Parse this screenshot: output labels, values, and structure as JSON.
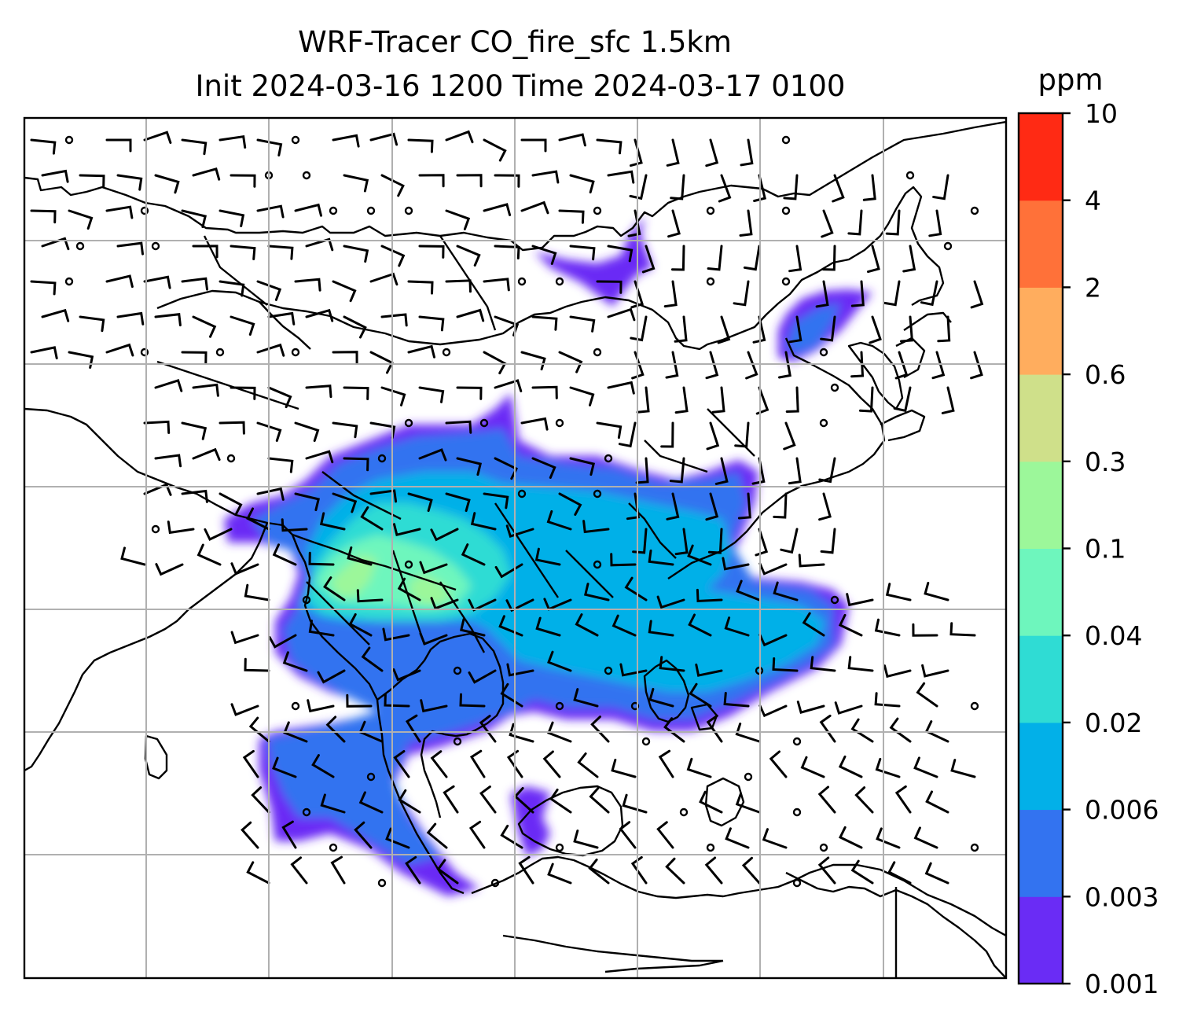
{
  "title": {
    "line1": "WRF-Tracer CO_fire_sfc 1.5km",
    "line2": "Init 2024-03-16 1200 Time 2024-03-17 0100"
  },
  "colorbar": {
    "unit": "ppm",
    "levels": [
      "0.001",
      "0.003",
      "0.006",
      "0.02",
      "0.04",
      "0.1",
      "0.3",
      "0.6",
      "2",
      "4",
      "10"
    ],
    "colors": [
      "#6a2cf5",
      "#3373f0",
      "#02b0e8",
      "#2fdcd4",
      "#6ef6bd",
      "#9cf79a",
      "#cfe08a",
      "#ffad5e",
      "#ff7139",
      "#ff2a14"
    ]
  },
  "chart_data": {
    "type": "heatmap",
    "field": "CO_fire_sfc",
    "grid": true,
    "colorbar_placement": "right",
    "overlays": [
      "coastlines",
      "country borders",
      "wind barbs"
    ]
  }
}
